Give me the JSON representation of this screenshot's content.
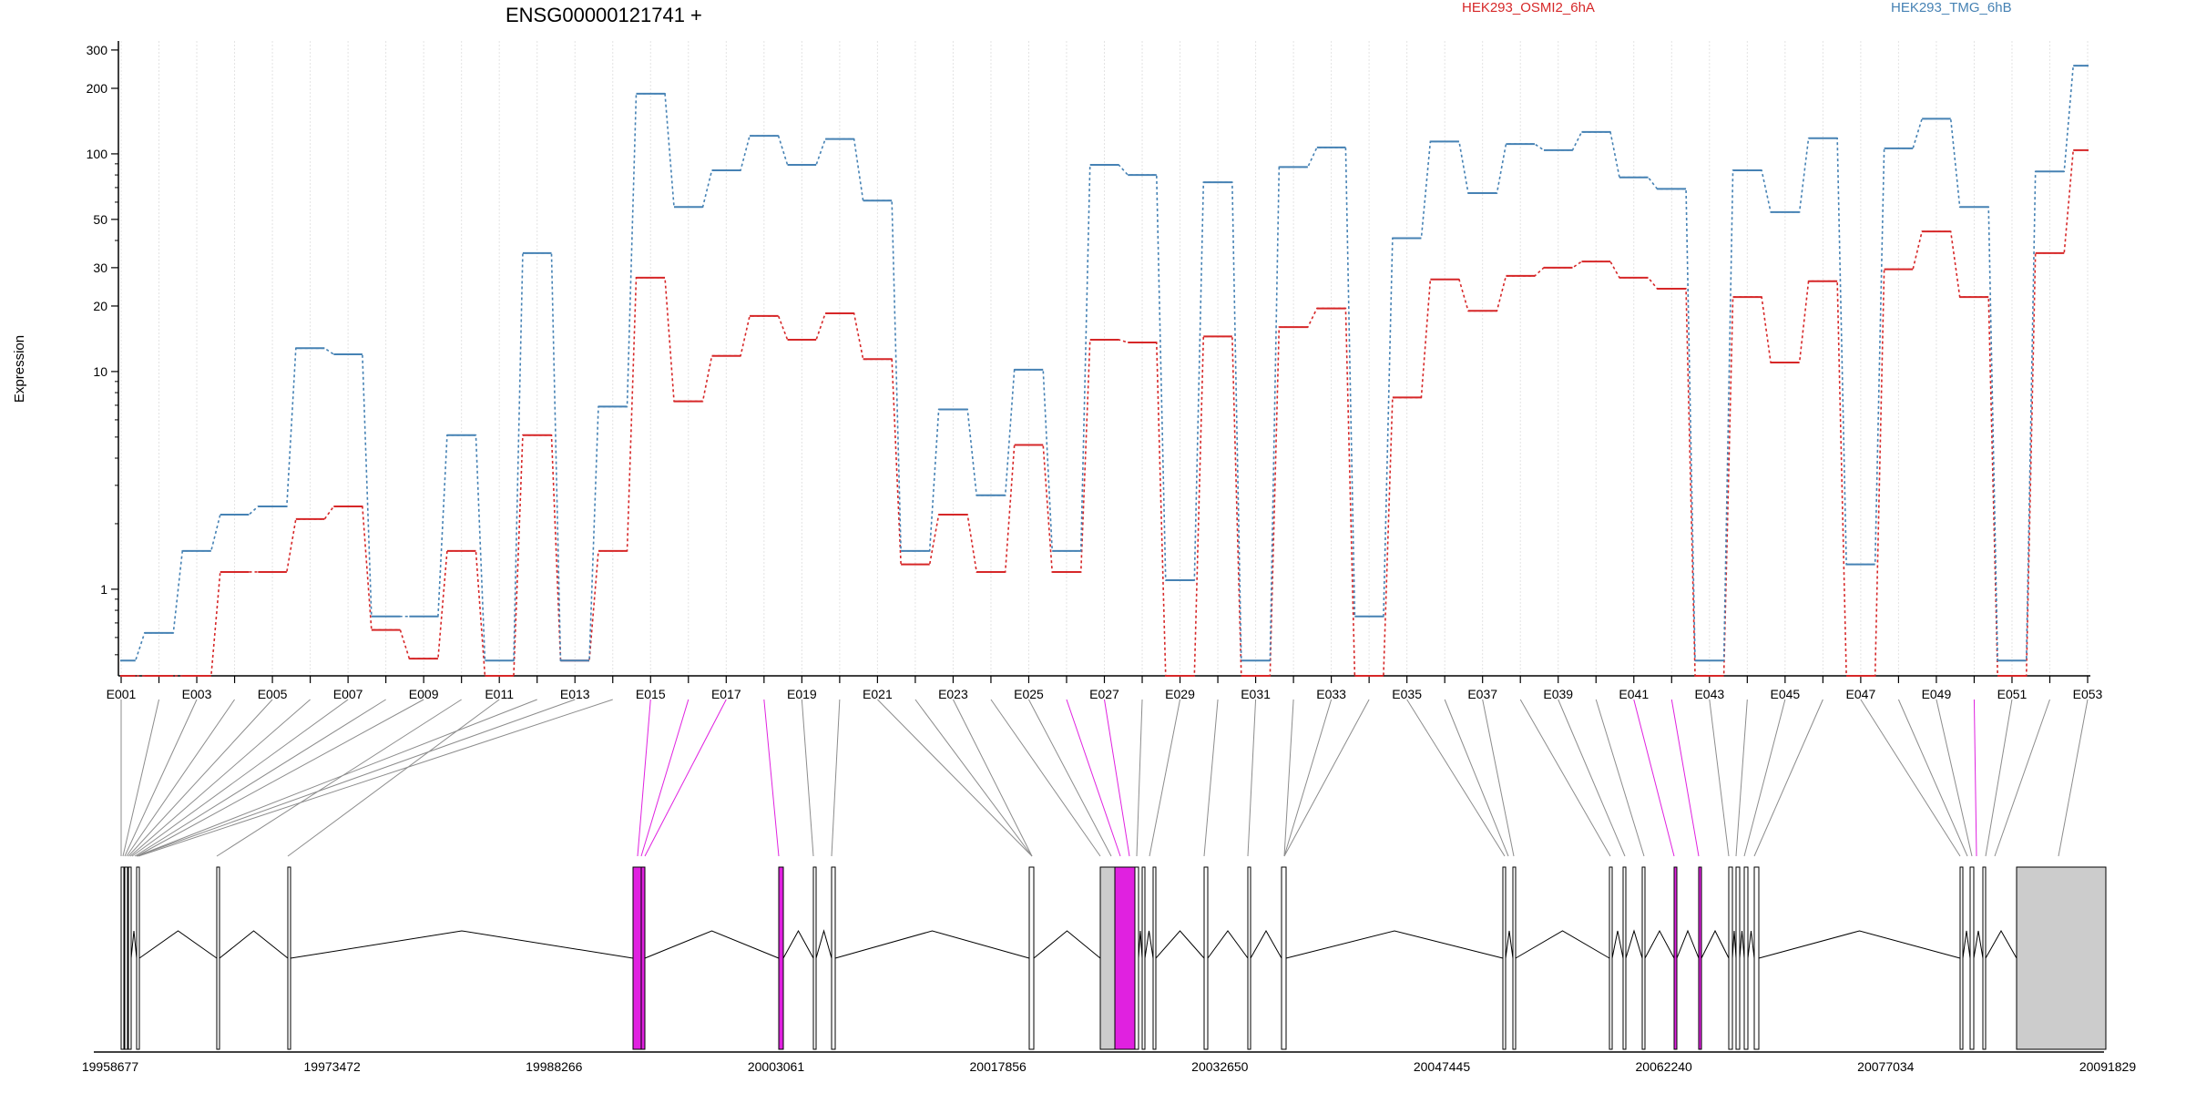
{
  "chart_data": {
    "type": "line",
    "title": "ENSG00000121741 +",
    "ylabel": "Expression",
    "yscale": "log",
    "ylim": [
      0.4,
      330
    ],
    "yticks": [
      1,
      10,
      20,
      30,
      50,
      100,
      200,
      300
    ],
    "ytick_labels": [
      "1",
      "10",
      "20",
      "30",
      "50",
      "100",
      "200",
      "300"
    ],
    "grid": "vertical",
    "legend_position": "top",
    "x": [
      "E001",
      "E002",
      "E003",
      "E004",
      "E005",
      "E006",
      "E007",
      "E008",
      "E009",
      "E010",
      "E011",
      "E012",
      "E013",
      "E014",
      "E015",
      "E016",
      "E017",
      "E018",
      "E019",
      "E020",
      "E021",
      "E022",
      "E023",
      "E024",
      "E025",
      "E026",
      "E027",
      "E028",
      "E029",
      "E030",
      "E031",
      "E032",
      "E033",
      "E034",
      "E035",
      "E036",
      "E037",
      "E038",
      "E039",
      "E040",
      "E041",
      "E042",
      "E043",
      "E044",
      "E045",
      "E046",
      "E047",
      "E048",
      "E049",
      "E050",
      "E051",
      "E052",
      "E053"
    ],
    "xtick_labels": [
      "E001",
      "E003",
      "E005",
      "E007",
      "E009",
      "E011",
      "E013",
      "E015",
      "E017",
      "E019",
      "E021",
      "E023",
      "E025",
      "E027",
      "E029",
      "E031",
      "E033",
      "E035",
      "E037",
      "E039",
      "E041",
      "E043",
      "E045",
      "E047",
      "E049",
      "E051",
      "E053"
    ],
    "series": [
      {
        "name": "HEK293_OSMI2_6hA",
        "color": "#d62728",
        "values": [
          0.4,
          0.4,
          0.4,
          1.2,
          1.2,
          2.1,
          2.4,
          0.65,
          0.48,
          1.5,
          0.4,
          5.1,
          0.47,
          1.5,
          27,
          7.3,
          11.8,
          18,
          14,
          18.5,
          11.4,
          1.3,
          2.2,
          1.2,
          4.6,
          1.2,
          14,
          13.6,
          0.4,
          14.5,
          0.4,
          16,
          19.5,
          0.4,
          7.6,
          26.5,
          19,
          27.5,
          30,
          32,
          27,
          24,
          0.4,
          22,
          11,
          26,
          0.4,
          29.5,
          44,
          22,
          0.4,
          35,
          104
        ]
      },
      {
        "name": "HEK293_TMG_6hB",
        "color": "#4682b4",
        "values": [
          0.47,
          0.63,
          1.5,
          2.2,
          2.4,
          12.8,
          12,
          0.75,
          0.75,
          5.1,
          0.47,
          35,
          0.47,
          6.9,
          189,
          57,
          84,
          121,
          89,
          117,
          61,
          1.5,
          6.7,
          2.7,
          10.2,
          1.5,
          89,
          80,
          1.1,
          74,
          0.47,
          87,
          107,
          0.75,
          41,
          114,
          66,
          111,
          104,
          126,
          78,
          69,
          0.47,
          84,
          54,
          118,
          1.3,
          106,
          145,
          57,
          0.47,
          83,
          254
        ]
      }
    ]
  },
  "gene_model": {
    "coord_labels": [
      "19958677",
      "19973472",
      "19988266",
      "20003061",
      "20017856",
      "20032650",
      "20047445",
      "20062240",
      "20077034",
      "20091829"
    ],
    "exon_colors": {
      "plain": "#ffffff",
      "gray": "#cccccc",
      "dexus": "#e021e0"
    }
  }
}
